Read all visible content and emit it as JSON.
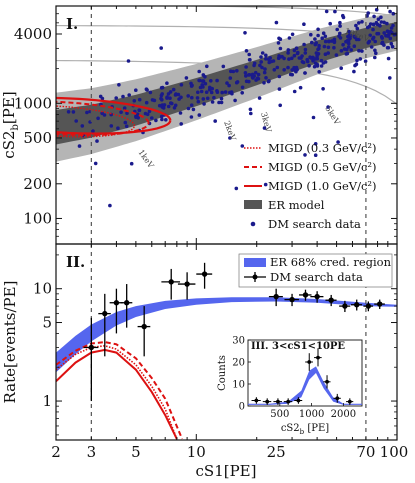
{
  "chart_data": [
    {
      "panel": "I.",
      "type": "scatter",
      "xlabel": "cS1[PE]",
      "ylabel": "cS2_b[PE]",
      "xscale": "log",
      "yscale": "log",
      "xlim": [
        2,
        100
      ],
      "ylim": [
        60,
        7000
      ],
      "yticks": [
        100,
        200,
        500,
        1000,
        4000
      ],
      "ytick_labels": [
        "100",
        "200",
        "500",
        "1000",
        "4000"
      ],
      "vlines": [
        3,
        70
      ],
      "energy_contour_labels": [
        "1keV",
        "2keV",
        "3keV",
        "5keV",
        "10keV"
      ],
      "legend": {
        "position": "lower-right",
        "entries": [
          {
            "label": "MIGD (0.3 GeV/c²)",
            "style": "dotted",
            "color": "#dd1111"
          },
          {
            "label": "MIGD (0.5 GeV/c²)",
            "style": "dashed",
            "color": "#dd1111"
          },
          {
            "label": "MIGD (1.0 GeV/c²)",
            "style": "solid",
            "color": "#dd1111"
          },
          {
            "label": "ER model",
            "style": "band",
            "color": "#555555"
          },
          {
            "label": "DM search data",
            "style": "marker",
            "color": "#1a1a8c"
          }
        ]
      },
      "er_band_center": [
        [
          2,
          620
        ],
        [
          3,
          700
        ],
        [
          5,
          870
        ],
        [
          10,
          1250
        ],
        [
          20,
          1850
        ],
        [
          40,
          2800
        ],
        [
          70,
          3700
        ],
        [
          100,
          4200
        ]
      ],
      "migd_contours": [
        {
          "name": "MIGD (1.0 GeV/c²)",
          "cx": 2.35,
          "cy": 780,
          "rx_dec": 0.5,
          "ry_dec": 0.15
        },
        {
          "name": "MIGD (0.5 GeV/c²)",
          "cx": 2.2,
          "cy": 740,
          "rx_dec": 0.42,
          "ry_dec": 0.14
        },
        {
          "name": "MIGD (0.3 GeV/c²)",
          "cx": 2.05,
          "cy": 700,
          "rx_dec": 0.38,
          "ry_dec": 0.13
        }
      ]
    },
    {
      "panel": "II.",
      "type": "line",
      "xlabel": "cS1[PE]",
      "ylabel": "Rate[events/PE]",
      "xscale": "log",
      "yscale": "log",
      "xlim": [
        2,
        100
      ],
      "ylim": [
        0.45,
        25
      ],
      "xticks": [
        2,
        3,
        5,
        10,
        25,
        70,
        100
      ],
      "xtick_labels": [
        "2",
        "3",
        "5",
        "10",
        "25",
        "70",
        "100"
      ],
      "yticks": [
        1,
        5,
        10
      ],
      "ytick_labels": [
        "1",
        "5",
        "10"
      ],
      "vlines": [
        3,
        70
      ],
      "legend": {
        "position": "top-right",
        "entries": [
          {
            "label": "ER 68% cred. region",
            "style": "band",
            "color": "#5566ee"
          },
          {
            "label": "DM search data",
            "style": "errorbar",
            "color": "#000000"
          }
        ]
      },
      "er_band": {
        "x": [
          2,
          2.5,
          3,
          4,
          5,
          7,
          10,
          15,
          25,
          40,
          70,
          100
        ],
        "lower": [
          1.8,
          2.6,
          3.4,
          4.7,
          5.6,
          6.6,
          7.2,
          7.6,
          7.7,
          7.5,
          7.0,
          6.9
        ],
        "upper": [
          2.7,
          3.8,
          4.8,
          6.2,
          7.0,
          7.8,
          8.2,
          8.4,
          8.4,
          8.1,
          7.5,
          7.2
        ]
      },
      "data_points": [
        {
          "x": 3.0,
          "y": 3.0,
          "ylo": 1.0,
          "yhi": 5.5,
          "xerr": 0.25
        },
        {
          "x": 3.5,
          "y": 6.0,
          "ylo": 2.5,
          "yhi": 9.0,
          "xerr": 0.25
        },
        {
          "x": 4.0,
          "y": 7.5,
          "ylo": 4.0,
          "yhi": 10.0,
          "xerr": 0.3
        },
        {
          "x": 4.5,
          "y": 7.5,
          "ylo": 4.5,
          "yhi": 11.0,
          "xerr": 0.3
        },
        {
          "x": 5.5,
          "y": 4.6,
          "ylo": 2.5,
          "yhi": 7.0,
          "xerr": 0.4
        },
        {
          "x": 7.5,
          "y": 11.5,
          "ylo": 8.0,
          "yhi": 15.0,
          "xerr": 0.8
        },
        {
          "x": 9.0,
          "y": 11.0,
          "ylo": 8.0,
          "yhi": 14.0,
          "xerr": 0.9
        },
        {
          "x": 11.0,
          "y": 13.5,
          "ylo": 10.0,
          "yhi": 17.0,
          "xerr": 1.0
        },
        {
          "x": 25.0,
          "y": 8.5,
          "ylo": 7.0,
          "yhi": 10.0,
          "xerr": 2.0
        },
        {
          "x": 30.0,
          "y": 8.0,
          "ylo": 7.0,
          "yhi": 9.0,
          "xerr": 2.5
        },
        {
          "x": 35.0,
          "y": 8.8,
          "ylo": 7.8,
          "yhi": 9.8,
          "xerr": 2.5
        },
        {
          "x": 40.0,
          "y": 8.5,
          "ylo": 7.5,
          "yhi": 9.5,
          "xerr": 3.0
        },
        {
          "x": 47.0,
          "y": 7.9,
          "ylo": 7.0,
          "yhi": 8.8,
          "xerr": 3.0
        },
        {
          "x": 55.0,
          "y": 7.0,
          "ylo": 6.2,
          "yhi": 7.8,
          "xerr": 3.5
        },
        {
          "x": 63.0,
          "y": 7.2,
          "ylo": 6.4,
          "yhi": 8.0,
          "xerr": 4.0
        },
        {
          "x": 72.0,
          "y": 7.0,
          "ylo": 6.3,
          "yhi": 7.7,
          "xerr": 4.0
        },
        {
          "x": 82.0,
          "y": 7.3,
          "ylo": 6.6,
          "yhi": 8.0,
          "xerr": 5.0
        }
      ],
      "migd_curves": [
        {
          "name": "MIGD (1.0 GeV/c²)",
          "style": "solid",
          "x": [
            2,
            2.5,
            3,
            3.5,
            4,
            5,
            6,
            7,
            8
          ],
          "y": [
            1.5,
            2.2,
            2.7,
            2.85,
            2.7,
            1.9,
            1.2,
            0.75,
            0.45
          ]
        },
        {
          "name": "MIGD (0.5 GeV/c²)",
          "style": "dashed",
          "x": [
            2,
            2.5,
            3,
            3.5,
            4,
            5,
            6,
            7,
            8.5
          ],
          "y": [
            2.1,
            2.8,
            3.25,
            3.35,
            3.2,
            2.4,
            1.6,
            1.05,
            0.45
          ]
        },
        {
          "name": "MIGD (0.3 GeV/c²)",
          "style": "dotted",
          "x": [
            2,
            2.5,
            3,
            3.5,
            4,
            5,
            6,
            7,
            8
          ],
          "y": [
            1.9,
            2.6,
            3.0,
            3.1,
            2.9,
            2.1,
            1.35,
            0.85,
            0.45
          ]
        }
      ]
    },
    {
      "panel": "III.",
      "title": "III. 3<cS1<10PE",
      "type": "line",
      "xlabel": "cS2_b [PE]",
      "ylabel": "Counts",
      "xscale": "log",
      "xlim": [
        250,
        3000
      ],
      "ylim": [
        0,
        30
      ],
      "xticks": [
        500,
        1000,
        2000
      ],
      "xtick_labels": [
        "500",
        "1000",
        "2000"
      ],
      "yticks": [
        0,
        10,
        20,
        30
      ],
      "ytick_labels": [
        "0",
        "10",
        "20",
        "30"
      ],
      "er_band": {
        "x": [
          250,
          400,
          600,
          800,
          950,
          1100,
          1300,
          1600,
          2000,
          3000
        ],
        "lower": [
          0.5,
          0.5,
          1.0,
          4.0,
          12.0,
          15.0,
          8.0,
          2.0,
          0.5,
          0.5
        ],
        "upper": [
          1.0,
          1.0,
          2.0,
          7.0,
          16.0,
          18.0,
          11.0,
          4.0,
          1.0,
          1.0
        ]
      },
      "data_points": [
        {
          "x": 300,
          "y": 2.5,
          "ylo": 1,
          "yhi": 4,
          "xerr": 30
        },
        {
          "x": 380,
          "y": 2.0,
          "ylo": 0.5,
          "yhi": 3.5,
          "xerr": 35
        },
        {
          "x": 480,
          "y": 2.0,
          "ylo": 0.5,
          "yhi": 3.5,
          "xerr": 45
        },
        {
          "x": 600,
          "y": 2.0,
          "ylo": 0.5,
          "yhi": 3.5,
          "xerr": 55
        },
        {
          "x": 750,
          "y": 2.5,
          "ylo": 1,
          "yhi": 4,
          "xerr": 65
        },
        {
          "x": 950,
          "y": 20.0,
          "ylo": 16,
          "yhi": 24,
          "xerr": 80
        },
        {
          "x": 1150,
          "y": 22.0,
          "ylo": 18,
          "yhi": 26,
          "xerr": 95
        },
        {
          "x": 1400,
          "y": 11.0,
          "ylo": 8,
          "yhi": 14,
          "xerr": 110
        },
        {
          "x": 1750,
          "y": 3.5,
          "ylo": 1.5,
          "yhi": 5.5,
          "xerr": 140
        },
        {
          "x": 2300,
          "y": 2.0,
          "ylo": 0.5,
          "yhi": 3.5,
          "xerr": 180
        }
      ]
    }
  ],
  "text": {
    "panel1_label": "I.",
    "panel2_label": "II.",
    "panel1_ylabel_main": "cS2",
    "panel1_ylabel_sub": "b",
    "panel1_ylabel_unit": "[PE]",
    "panel2_ylabel": "Rate[events/PE]",
    "xlabel": "cS1[PE]",
    "inset_title": "III. 3<cS1<10PE",
    "inset_ylabel": "Counts",
    "inset_xlabel_main": "cS2",
    "inset_xlabel_sub": "b",
    "inset_xlabel_unit": " [PE]",
    "kev_1": "1keV",
    "kev_2": "2keV",
    "kev_3": "3keV",
    "kev_5": "5keV",
    "kev_10": "10keV",
    "legend1": [
      "MIGD (0.3 GeV/c²)",
      "MIGD (0.5 GeV/c²)",
      "MIGD (1.0 GeV/c²)",
      "ER model",
      "DM search data"
    ],
    "legend2": [
      "ER 68% cred. region",
      "DM search data"
    ]
  },
  "colors": {
    "migd": "#dd1111",
    "er_dark": "#555555",
    "er_light": "#b5b5b5",
    "dm_points": "#1a1a8c",
    "er_band2": "#5566ee",
    "contours": "#b0b0b0"
  }
}
